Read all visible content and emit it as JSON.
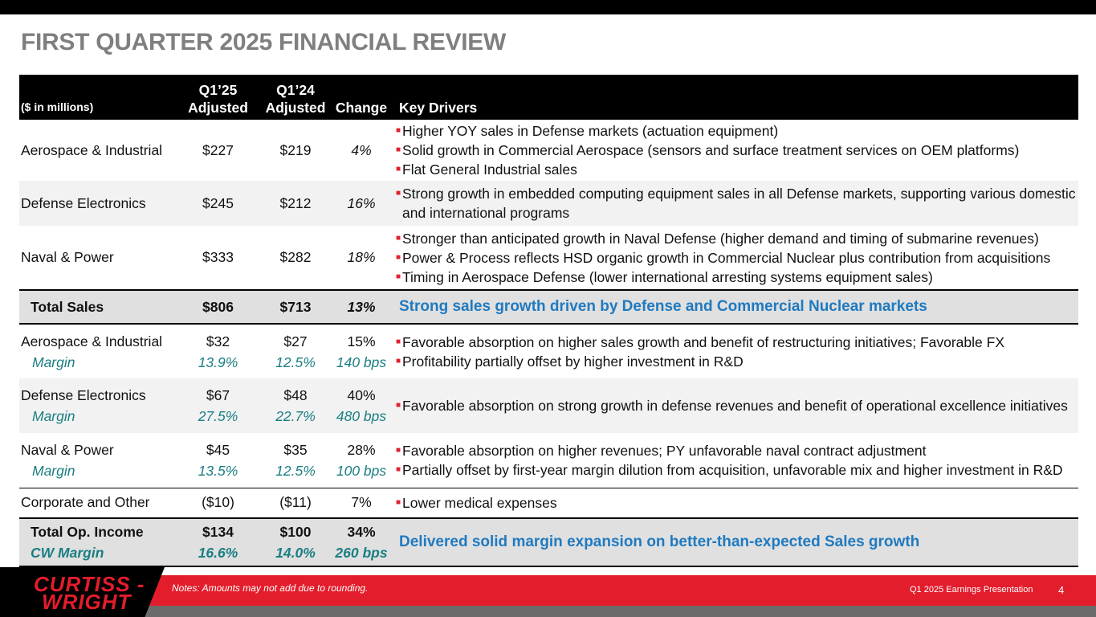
{
  "title": "FIRST QUARTER 2025 FINANCIAL REVIEW",
  "header": {
    "units": "($ in millions)",
    "q125_line1": "Q1’25",
    "q125_line2": "Adjusted",
    "q124_line1": "Q1’24",
    "q124_line2": "Adjusted",
    "change": "Change",
    "drivers": "Key Drivers"
  },
  "sales": [
    {
      "segment": "Aerospace & Industrial",
      "q125": "$227",
      "q124": "$219",
      "change": "4%",
      "drivers": [
        "Higher YOY sales in Defense markets (actuation equipment)",
        "Solid growth in Commercial Aerospace (sensors and surface treatment services on OEM platforms)",
        "Flat General Industrial sales"
      ]
    },
    {
      "segment": "Defense Electronics",
      "q125": "$245",
      "q124": "$212",
      "change": "16%",
      "drivers": [
        "Strong growth in embedded computing equipment sales in all Defense markets, supporting various domestic and international programs"
      ]
    },
    {
      "segment": "Naval & Power",
      "q125": "$333",
      "q124": "$282",
      "change": "18%",
      "drivers": [
        "Stronger than anticipated growth in Naval Defense (higher demand and timing of submarine revenues)",
        "Power & Process reflects HSD organic growth in Commercial Nuclear plus contribution from acquisitions",
        "Timing in Aerospace Defense (lower international arresting systems equipment sales)"
      ]
    }
  ],
  "total_sales": {
    "label": "Total Sales",
    "q125": "$806",
    "q124": "$713",
    "change": "13%",
    "summary": "Strong sales growth driven by Defense and Commercial Nuclear markets"
  },
  "op_income": [
    {
      "segment": "Aerospace & Industrial",
      "margin_label": "Margin",
      "q125": "$32",
      "q124": "$27",
      "change": "15%",
      "q125_margin": "13.9%",
      "q124_margin": "12.5%",
      "margin_change": "140 bps",
      "drivers": [
        "Favorable absorption on higher sales growth and benefit of restructuring initiatives; Favorable FX",
        "Profitability partially offset by higher investment in R&D"
      ]
    },
    {
      "segment": "Defense Electronics",
      "margin_label": "Margin",
      "q125": "$67",
      "q124": "$48",
      "change": "40%",
      "q125_margin": "27.5%",
      "q124_margin": "22.7%",
      "margin_change": "480 bps",
      "drivers": [
        "Favorable absorption on strong growth in defense revenues and benefit of operational excellence initiatives"
      ]
    },
    {
      "segment": "Naval & Power",
      "margin_label": "Margin",
      "q125": "$45",
      "q124": "$35",
      "change": "28%",
      "q125_margin": "13.5%",
      "q124_margin": "12.5%",
      "margin_change": "100 bps",
      "drivers": [
        "Favorable absorption on higher revenues; PY unfavorable naval contract adjustment",
        "Partially offset by first-year margin dilution from acquisition, unfavorable mix and higher investment in R&D"
      ]
    }
  ],
  "corporate": {
    "label": "Corporate and Other",
    "q125": "($10)",
    "q124": "($11)",
    "change": "7%",
    "driver": "Lower medical expenses"
  },
  "total_op": {
    "label": "Total Op. Income",
    "margin_label": "CW Margin",
    "q125": "$134",
    "q124": "$100",
    "change": "34%",
    "q125_margin": "16.6%",
    "q124_margin": "14.0%",
    "margin_change": "260 bps",
    "summary": "Delivered solid margin expansion on better-than-expected Sales growth"
  },
  "footer": {
    "logo_line1": "CURTISS -",
    "logo_line2": "WRIGHT",
    "notes": "Notes: Amounts may not add due to rounding.",
    "presentation": "Q1 2025 Earnings Presentation",
    "page": "4"
  },
  "colors": {
    "accent_red": "#e31d2b",
    "bullet_red": "#e0202f",
    "margin_teal": "#1a7e82",
    "summary_blue": "#1f7ac0"
  }
}
